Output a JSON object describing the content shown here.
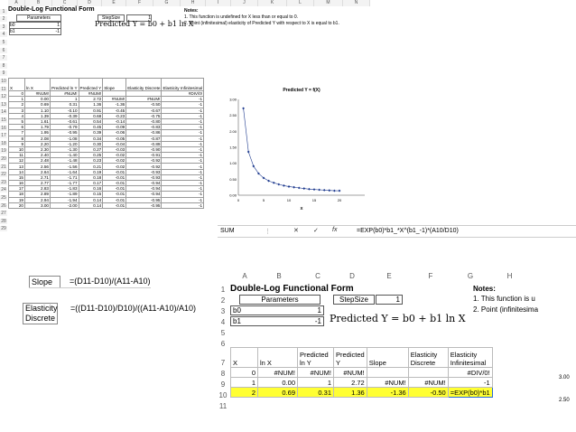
{
  "top_sheet": {
    "col_headers": [
      "A",
      "B",
      "C",
      "D",
      "E",
      "F",
      "G",
      "H",
      "I",
      "J",
      "K",
      "L",
      "M",
      "N"
    ],
    "title": "Double-Log Functional Form",
    "parameters_label": "Parameters",
    "stepsize_label": "StepSize",
    "stepsize_value": "1",
    "b0_label": "b0",
    "b0_value": "1",
    "b1_label": "b1",
    "b1_value": "-1",
    "predicted_eq": "Predicted Y = b0 + b1 ln X",
    "notes_title": "Notes:",
    "note1": "1. This function is undefined for X less than or equal to 0.",
    "note2": "2. Point (infinitesimal) elasticity of Predicted Y with respect to X is equal to b1.",
    "table_headers": [
      "X",
      "ln X",
      "Predicted ln Y",
      "Predicted Y",
      "Slope",
      "Elasticity Discrete",
      "Elasticity Infinitesimal"
    ],
    "rows": [
      [
        "0",
        "#NUM!",
        "#NUM!",
        "#NUM!",
        "",
        "",
        "#DIV/0!"
      ],
      [
        "1",
        "0.00",
        "1",
        "2.72",
        "#NUM!",
        "#NUM!",
        "-1"
      ],
      [
        "2",
        "0.69",
        "0.31",
        "1.36",
        "-1.36",
        "-0.50",
        "-1"
      ],
      [
        "3",
        "1.10",
        "-0.10",
        "0.91",
        "-0.45",
        "-0.67",
        "-1"
      ],
      [
        "4",
        "1.39",
        "-0.39",
        "0.68",
        "-0.23",
        "-0.75",
        "-1"
      ],
      [
        "5",
        "1.61",
        "-0.61",
        "0.54",
        "-0.14",
        "-0.80",
        "-1"
      ],
      [
        "6",
        "1.79",
        "-0.79",
        "0.45",
        "-0.09",
        "-0.83",
        "-1"
      ],
      [
        "7",
        "1.95",
        "-0.95",
        "0.39",
        "-0.06",
        "-0.86",
        "-1"
      ],
      [
        "8",
        "2.08",
        "-1.08",
        "0.34",
        "-0.05",
        "-0.87",
        "-1"
      ],
      [
        "9",
        "2.20",
        "-1.20",
        "0.30",
        "-0.04",
        "-0.89",
        "-1"
      ],
      [
        "10",
        "2.30",
        "-1.30",
        "0.27",
        "-0.03",
        "-0.90",
        "-1"
      ],
      [
        "11",
        "2.40",
        "-1.40",
        "0.25",
        "-0.02",
        "-0.91",
        "-1"
      ],
      [
        "12",
        "2.48",
        "-1.48",
        "0.23",
        "-0.02",
        "-0.92",
        "-1"
      ],
      [
        "13",
        "2.56",
        "-1.56",
        "0.21",
        "-0.02",
        "-0.92",
        "-1"
      ],
      [
        "14",
        "2.64",
        "-1.64",
        "0.19",
        "-0.01",
        "-0.93",
        "-1"
      ],
      [
        "15",
        "2.71",
        "-1.71",
        "0.18",
        "-0.01",
        "-0.93",
        "-1"
      ],
      [
        "16",
        "2.77",
        "-1.77",
        "0.17",
        "-0.01",
        "-0.94",
        "-1"
      ],
      [
        "17",
        "2.83",
        "-1.83",
        "0.16",
        "-0.01",
        "-0.94",
        "-1"
      ],
      [
        "18",
        "2.89",
        "-1.89",
        "0.15",
        "-0.01",
        "-0.94",
        "-1"
      ],
      [
        "19",
        "2.94",
        "-1.94",
        "0.14",
        "-0.01",
        "-0.95",
        "-1"
      ],
      [
        "20",
        "3.00",
        "-2.00",
        "0.14",
        "-0.01",
        "-0.95",
        "-1"
      ]
    ]
  },
  "chart_data": {
    "type": "scatter",
    "title": "Predicted Y = f(X)",
    "xlabel": "X",
    "ylabel": "",
    "x": [
      1,
      2,
      3,
      4,
      5,
      6,
      7,
      8,
      9,
      10,
      11,
      12,
      13,
      14,
      15,
      16,
      17,
      18,
      19,
      20
    ],
    "y": [
      2.72,
      1.36,
      0.91,
      0.68,
      0.54,
      0.45,
      0.39,
      0.34,
      0.3,
      0.27,
      0.25,
      0.23,
      0.21,
      0.19,
      0.18,
      0.17,
      0.16,
      0.15,
      0.14,
      0.14
    ],
    "xlim": [
      0,
      25
    ],
    "ylim": [
      0,
      3
    ],
    "xticks": [
      "0",
      "5",
      "10",
      "15",
      "20"
    ],
    "yticks": [
      "0.00",
      "0.50",
      "1.00",
      "1.50",
      "2.00",
      "2.50",
      "3.00"
    ],
    "grid": false
  },
  "formula_bar": {
    "name_box": "SUM",
    "cancel": "✕",
    "enter": "✓",
    "fx": "fx",
    "formula": "=EXP(b0)*b1_*X^(b1_-1)*(A10/D10)"
  },
  "formulas": {
    "slope_label": "Slope",
    "slope_formula": "=(D11-D10)/(A11-A10)",
    "elasticity_label_1": "Elasticity",
    "elasticity_label_2": "Discrete",
    "elasticity_formula": "=((D11-D10)/D10)/((A11-A10)/A10)"
  },
  "zoom_sheet": {
    "col_headers": [
      "A",
      "B",
      "C",
      "D",
      "E",
      "F",
      "G",
      "H"
    ],
    "row_headers": [
      "1",
      "2",
      "3",
      "4",
      "5",
      "6",
      "7",
      "8",
      "9",
      "10",
      "11"
    ],
    "title": "Double-Log Functional Form",
    "parameters_label": "Parameters",
    "stepsize_label": "StepSize",
    "stepsize_value": "1",
    "b0_label": "b0",
    "b0_value": "1",
    "b1_label": "b1",
    "b1_value": "-1",
    "predicted_eq": "Predicted Y = b0 + b1 ln X",
    "notes_title": "Notes:",
    "note1": "1. This function is u",
    "note2": "2. Point (infinitesima",
    "headers": [
      "X",
      "ln X",
      "Predicted ln Y",
      "Predicted Y",
      "Slope",
      "Elasticity Discrete",
      "Elasticity Infinitesimal"
    ],
    "row8": [
      "0",
      "#NUM!",
      "#NUM!",
      "#NUM!",
      "",
      "",
      "#DIV/0!"
    ],
    "row9": [
      "1",
      "0.00",
      "1",
      "2.72",
      "#NUM!",
      "#NUM!",
      "-1"
    ],
    "row10": [
      "2",
      "0.69",
      "0.31",
      "1.36",
      "-1.36",
      "-0.50",
      "=EXP(b0)*b1"
    ],
    "side_300": "3.00",
    "side_250": "2.50"
  }
}
